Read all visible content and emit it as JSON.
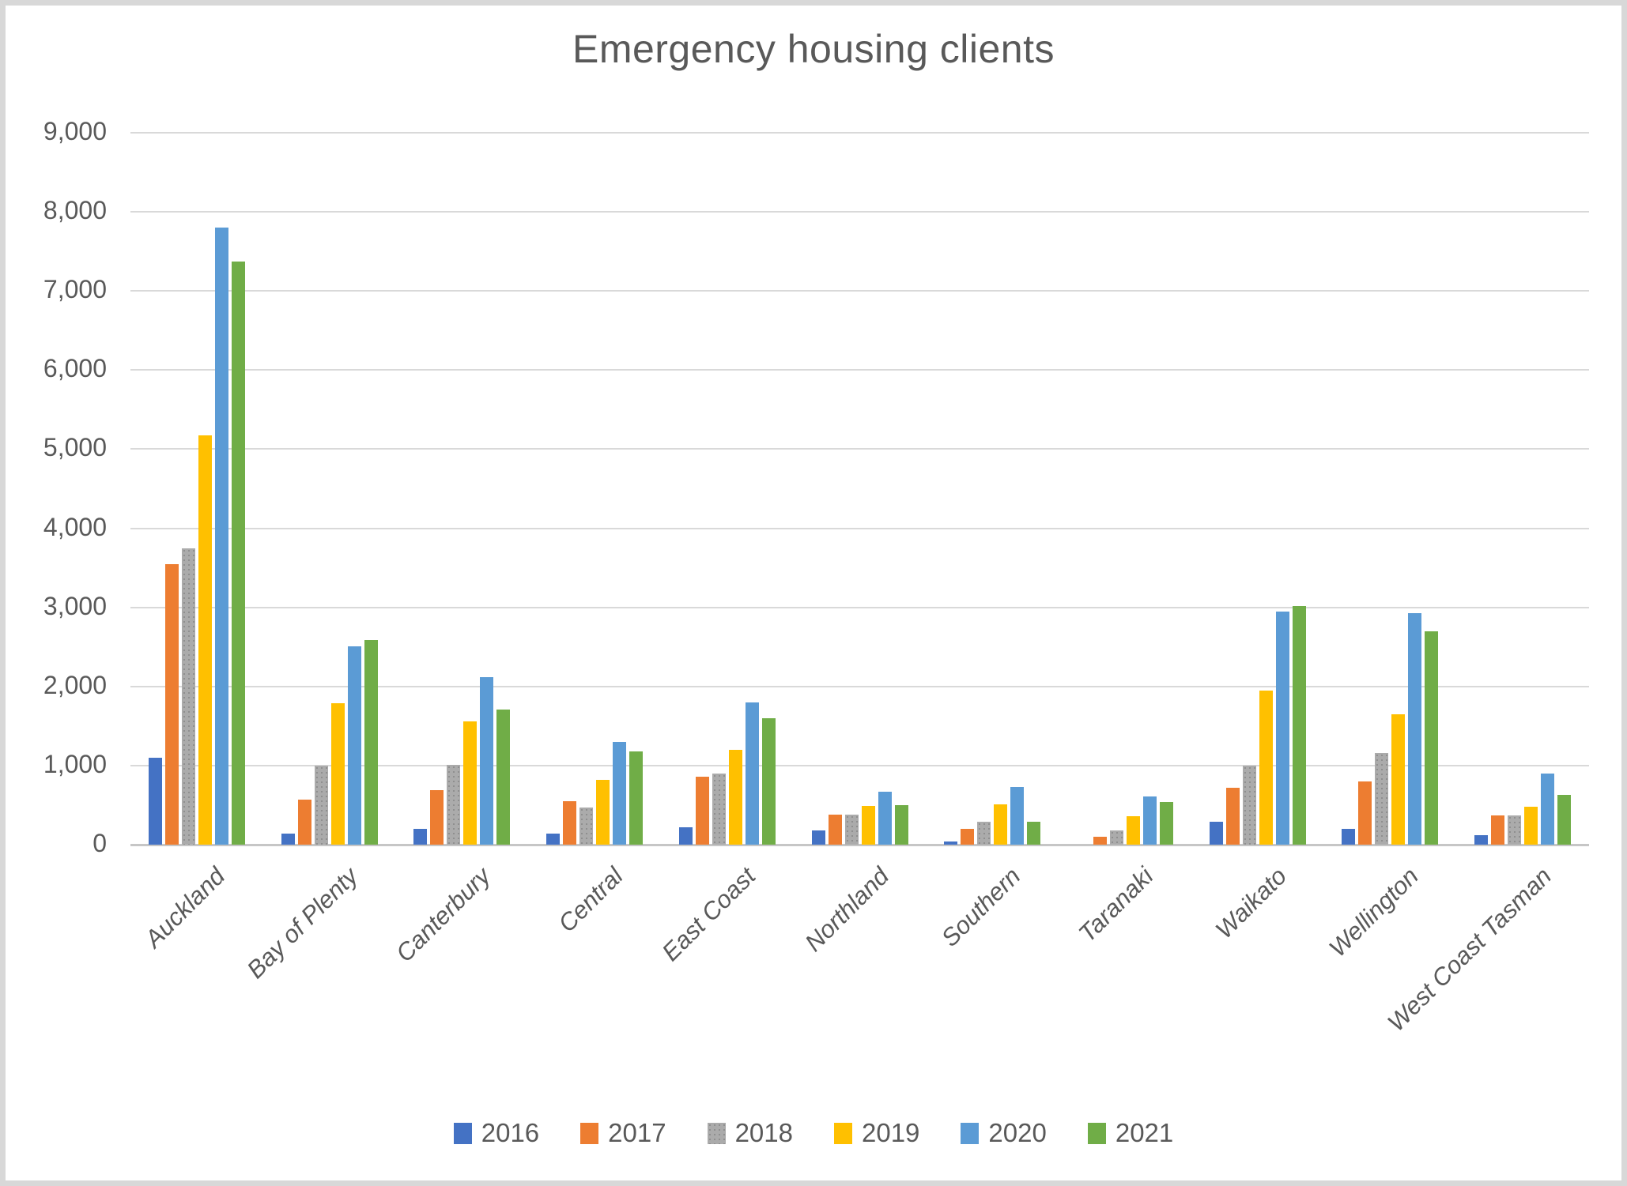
{
  "chart_data": {
    "type": "bar",
    "title": "Emergency housing clients",
    "categories": [
      "Auckland",
      "Bay of Plenty",
      "Canterbury",
      "Central",
      "East Coast",
      "Northland",
      "Southern",
      "Taranaki",
      "Waikato",
      "Wellington",
      "West Coast Tasman"
    ],
    "series": [
      {
        "name": "2016",
        "color": "#4472C4",
        "values": [
          1100,
          140,
          200,
          140,
          220,
          175,
          40,
          0,
          290,
          200,
          120
        ]
      },
      {
        "name": "2017",
        "color": "#ED7D31",
        "values": [
          3550,
          570,
          690,
          550,
          860,
          380,
          200,
          100,
          720,
          800,
          370
        ]
      },
      {
        "name": "2018",
        "color": "#A5A5A5",
        "values": [
          3750,
          1000,
          1010,
          470,
          900,
          380,
          290,
          175,
          1000,
          1160,
          370
        ]
      },
      {
        "name": "2019",
        "color": "#FFC000",
        "values": [
          5170,
          1790,
          1560,
          820,
          1200,
          490,
          510,
          360,
          1950,
          1650,
          480
        ]
      },
      {
        "name": "2020",
        "color": "#5B9BD5",
        "values": [
          7800,
          2510,
          2120,
          1300,
          1800,
          670,
          730,
          610,
          2950,
          2930,
          900
        ]
      },
      {
        "name": "2021",
        "color": "#70AD47",
        "values": [
          7370,
          2590,
          1710,
          1180,
          1600,
          500,
          290,
          540,
          3020,
          2700,
          630
        ]
      }
    ],
    "ylim": [
      0,
      9000
    ],
    "ytick_interval": 1000,
    "ytick_labels": [
      "0",
      "1,000",
      "2,000",
      "3,000",
      "4,000",
      "5,000",
      "6,000",
      "7,000",
      "8,000",
      "9,000"
    ],
    "xlabel": "",
    "ylabel": "",
    "grid": true,
    "legend_position": "bottom",
    "plot_background": "#ffffff",
    "gridline_color": "#d9d9d9",
    "axis_line_color": "#c6c6c6",
    "text_color": "#595959",
    "frame_border_color": "#d8d8d8"
  }
}
